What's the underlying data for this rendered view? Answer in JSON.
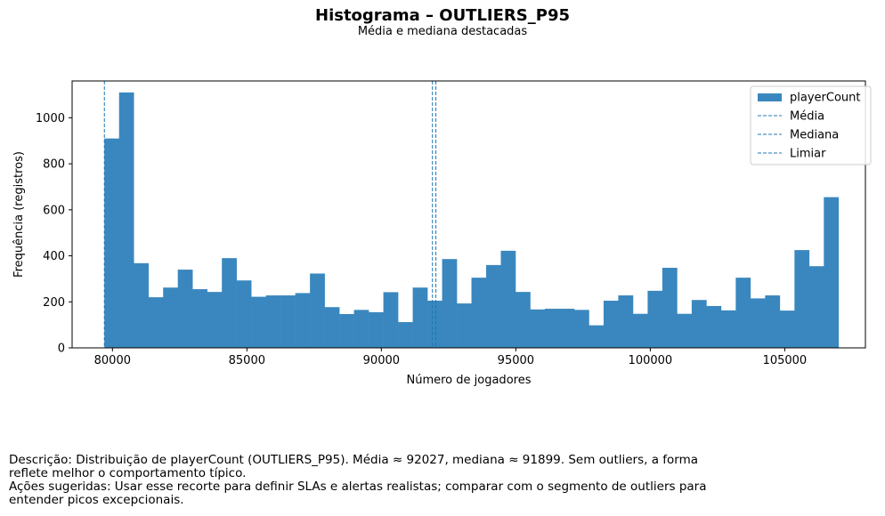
{
  "header": {
    "title": "Histograma – OUTLIERS_P95",
    "subtitle": "Média e mediana destacadas"
  },
  "footer": {
    "description": "Descrição: Distribuição de playerCount (OUTLIERS_P95). Média ≈ 92027, mediana ≈ 91899. Sem outliers, a forma reflete melhor o comportamento típico.",
    "actions": "Ações sugeridas: Usar esse recorte para definir SLAs e alertas realistas; comparar com o segmento de outliers para entender picos excepcionais."
  },
  "colors": {
    "bar": "#3a87bf",
    "line": "#1f77b4"
  },
  "chart_data": {
    "type": "bar",
    "title": "Histograma – OUTLIERS_P95",
    "subtitle": "Média e mediana destacadas",
    "xlabel": "Número de jogadores",
    "ylabel": "Frequência (registros)",
    "xlim": [
      78500,
      108000
    ],
    "ylim": [
      0,
      1160
    ],
    "xticks": [
      80000,
      85000,
      90000,
      95000,
      100000,
      105000
    ],
    "xtick_labels": [
      "80000",
      "85000",
      "90000",
      "95000",
      "100000",
      "105000"
    ],
    "yticks": [
      0,
      200,
      400,
      600,
      800,
      1000
    ],
    "ytick_labels": [
      "0",
      "200",
      "400",
      "600",
      "800",
      "1000"
    ],
    "bin_start": 79700,
    "bin_end": 107000,
    "series": [
      {
        "name": "playerCount",
        "values": [
          910,
          1110,
          368,
          220,
          262,
          340,
          255,
          243,
          390,
          293,
          222,
          228,
          228,
          238,
          323,
          177,
          147,
          165,
          155,
          242,
          112,
          262,
          205,
          386,
          193,
          305,
          360,
          422,
          243,
          167,
          170,
          170,
          165,
          98,
          205,
          228,
          148,
          248,
          348,
          148,
          208,
          182,
          163,
          305,
          215,
          228,
          162,
          425,
          355,
          655
        ]
      }
    ],
    "vlines": [
      {
        "name": "Média",
        "x": 92027
      },
      {
        "name": "Mediana",
        "x": 91899
      },
      {
        "name": "Limiar",
        "x": 79700
      }
    ],
    "legend_position": "top-right",
    "grid": false
  }
}
